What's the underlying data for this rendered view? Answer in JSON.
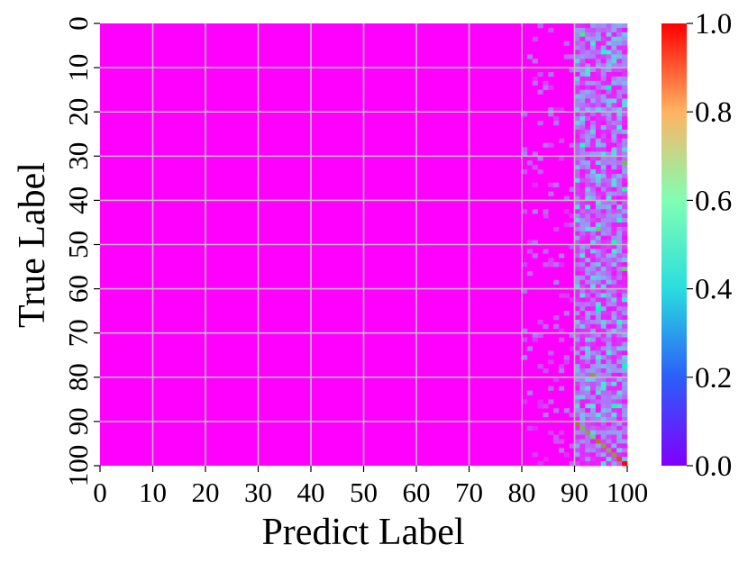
{
  "chart_data": {
    "type": "heatmap",
    "title": "",
    "xlabel": "Predict Label",
    "ylabel": "True Label",
    "x_ticks": [
      "0",
      "10",
      "20",
      "30",
      "40",
      "50",
      "60",
      "70",
      "80",
      "90",
      "100"
    ],
    "y_ticks": [
      "0",
      "10",
      "20",
      "30",
      "40",
      "50",
      "60",
      "70",
      "80",
      "90",
      "100"
    ],
    "x_range": [
      0,
      100
    ],
    "y_range": [
      0,
      100
    ],
    "n_rows": 100,
    "n_cols": 100,
    "colorbar": {
      "colormap": "rainbow",
      "range": [
        0.0,
        1.0
      ],
      "ticks": [
        "0.0",
        "0.2",
        "0.4",
        "0.6",
        "0.8",
        "1.0"
      ]
    },
    "grid": true,
    "grid_step": 10,
    "grid_color": "#bcbcbc",
    "base_value": 0.0,
    "notes_visible": "Columns 0-79 near 0; columns 80-89 sparse low values; columns 90-99 scattered values up to ~0.8 for all rows; rows 90-99 show a strong diagonal near 1.0.",
    "hot_cells": [
      [
        2,
        91,
        0.65
      ],
      [
        4,
        93,
        0.35
      ],
      [
        6,
        95,
        0.45
      ],
      [
        8,
        97,
        0.3
      ],
      [
        11,
        92,
        0.35
      ],
      [
        14,
        96,
        0.5
      ],
      [
        19,
        94,
        0.3
      ],
      [
        23,
        98,
        0.4
      ],
      [
        27,
        91,
        0.45
      ],
      [
        29,
        95,
        0.35
      ],
      [
        31,
        99,
        0.75
      ],
      [
        33,
        93,
        0.3
      ],
      [
        37,
        99,
        0.6
      ],
      [
        39,
        96,
        0.35
      ],
      [
        41,
        92,
        0.4
      ],
      [
        44,
        98,
        0.45
      ],
      [
        46,
        94,
        0.7
      ],
      [
        49,
        97,
        0.55
      ],
      [
        52,
        91,
        0.35
      ],
      [
        55,
        99,
        0.7
      ],
      [
        57,
        93,
        0.3
      ],
      [
        61,
        95,
        0.35
      ],
      [
        64,
        94,
        0.5
      ],
      [
        67,
        98,
        0.4
      ],
      [
        71,
        92,
        0.3
      ],
      [
        74,
        96,
        0.35
      ],
      [
        77,
        99,
        0.5
      ],
      [
        79,
        93,
        0.8
      ],
      [
        81,
        95,
        0.4
      ],
      [
        84,
        91,
        0.3
      ],
      [
        86,
        97,
        0.55
      ],
      [
        88,
        94,
        0.35
      ]
    ],
    "diagonal": [
      [
        90,
        90,
        0.85
      ],
      [
        91,
        91,
        0.75
      ],
      [
        92,
        92,
        0.8
      ],
      [
        93,
        93,
        0.7
      ],
      [
        94,
        94,
        0.85
      ],
      [
        95,
        95,
        0.8
      ],
      [
        96,
        96,
        0.78
      ],
      [
        97,
        97,
        0.82
      ],
      [
        98,
        98,
        0.9
      ],
      [
        99,
        99,
        1.0
      ]
    ]
  }
}
